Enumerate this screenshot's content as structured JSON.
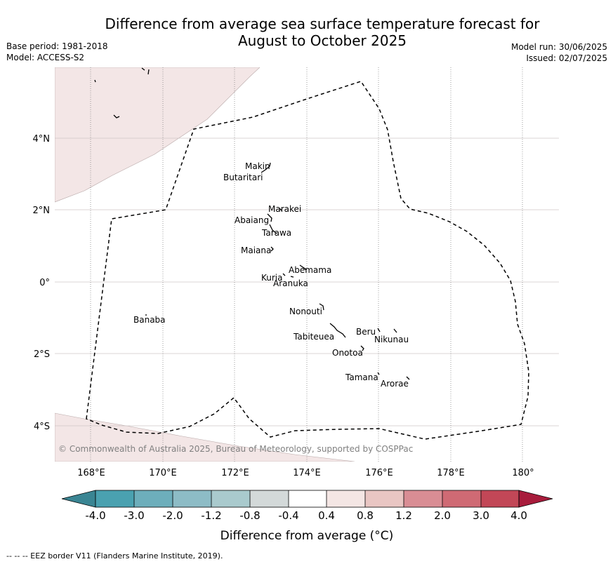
{
  "title": {
    "line1": "Difference from average sea surface temperature forecast for",
    "line2": "August to October 2025"
  },
  "meta_left": {
    "base_period": "Base period: 1981-2018",
    "model": "Model: ACCESS-S2"
  },
  "meta_right": {
    "model_run": "Model run: 30/06/2025",
    "issued": "Issued: 02/07/2025"
  },
  "map": {
    "lon_labels": [
      "168°E",
      "170°E",
      "172°E",
      "174°E",
      "176°E",
      "178°E",
      "180°"
    ],
    "lat_labels": [
      "4°N",
      "2°N",
      "0°",
      "2°S",
      "4°S"
    ],
    "places": [
      "Makin",
      "Butaritari",
      "Marakei",
      "Abaiang",
      "Tarawa",
      "Maiana",
      "Abemama",
      "Kuria",
      "Aranuka",
      "Banaba",
      "Nonouti",
      "Beru",
      "Nikunau",
      "Tabiteuea",
      "Onotoa",
      "Tamana",
      "Arorae"
    ],
    "copyright": "© Commonwealth of Australia 2025, Bureau of Meteorology, supported by COSPPac",
    "colors": {
      "land_tint": "#f3e6e6",
      "eez_line": "#000000",
      "grid": "#cccccc"
    }
  },
  "colorbar": {
    "tick_labels": [
      "-4.0",
      "-3.0",
      "-2.0",
      "-1.2",
      "-0.8",
      "-0.4",
      "0.4",
      "0.8",
      "1.2",
      "2.0",
      "3.0",
      "4.0"
    ],
    "colors": [
      "#3a8593",
      "#4aa1b0",
      "#6daebb",
      "#8dbcc6",
      "#a9cacd",
      "#d3d9d9",
      "#ffffff",
      "#f4e6e4",
      "#e9c6c3",
      "#d98d94",
      "#cf6a74",
      "#c24757",
      "#a81c3c"
    ],
    "label": "Difference from average (°C)"
  },
  "footnote": "--  --  -- EEZ border V11 (Flanders Marine Institute, 2019)."
}
